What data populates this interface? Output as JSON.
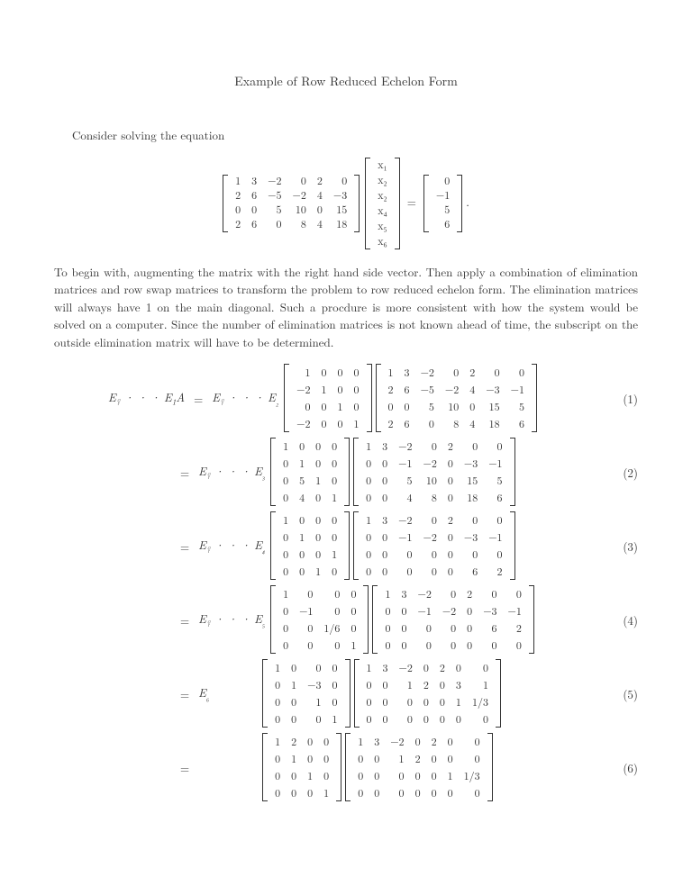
{
  "title": "Example of Row Reduced Echelon Form",
  "intro": "Consider solving the equation",
  "main_matrix": [
    [
      "1",
      "3",
      "−2",
      "0",
      "2",
      "0"
    ],
    [
      "2",
      "6",
      "−5",
      "−2",
      "4",
      "−3"
    ],
    [
      "0",
      "0",
      "5",
      "10",
      "0",
      "15"
    ],
    [
      "2",
      "6",
      "0",
      "8",
      "4",
      "18"
    ]
  ],
  "x_vector": [
    "x₁",
    "x₂",
    "x₂",
    "x₄",
    "x₅",
    "x₆"
  ],
  "rhs_vector": [
    "0",
    "−1",
    "5",
    "6"
  ],
  "body_text": "To begin with, augmenting the matrix with the right hand side vector.  Then apply a combination of elimination matrices and row swap matrices to transform the problem to row reduced echelon form. The elimination matrices will always have 1 on the main diagonal. Such a procdure is more consistent with how the system would be solved on a computer. Since the number of elimination matrices is not known ahead of time, the subscript on the outside elimination matrix will have to be determined.",
  "eq_prefix": "E",
  "eq_subscript_unknown": "?",
  "eq_ellipsis": "· · ·",
  "steps": [
    {
      "num": "(1)",
      "left_label": "E? · · · E₁A",
      "right_label": "E? · · · E₂",
      "E": [
        [
          "1",
          "0",
          "0",
          "0"
        ],
        [
          "−2",
          "1",
          "0",
          "0"
        ],
        [
          "0",
          "0",
          "1",
          "0"
        ],
        [
          "−2",
          "0",
          "0",
          "1"
        ]
      ],
      "M": [
        [
          "1",
          "3",
          "−2",
          "0",
          "2",
          "0",
          "0"
        ],
        [
          "2",
          "6",
          "−5",
          "−2",
          "4",
          "−3",
          "−1"
        ],
        [
          "0",
          "0",
          "5",
          "10",
          "0",
          "15",
          "5"
        ],
        [
          "2",
          "6",
          "0",
          "8",
          "4",
          "18",
          "6"
        ]
      ]
    },
    {
      "num": "(2)",
      "left_label": "",
      "right_label": "E? · · · E₃",
      "E": [
        [
          "1",
          "0",
          "0",
          "0"
        ],
        [
          "0",
          "1",
          "0",
          "0"
        ],
        [
          "0",
          "5",
          "1",
          "0"
        ],
        [
          "0",
          "4",
          "0",
          "1"
        ]
      ],
      "M": [
        [
          "1",
          "3",
          "−2",
          "0",
          "2",
          "0",
          "0"
        ],
        [
          "0",
          "0",
          "−1",
          "−2",
          "0",
          "−3",
          "−1"
        ],
        [
          "0",
          "0",
          "5",
          "10",
          "0",
          "15",
          "5"
        ],
        [
          "0",
          "0",
          "4",
          "8",
          "0",
          "18",
          "6"
        ]
      ]
    },
    {
      "num": "(3)",
      "left_label": "",
      "right_label": "E? · · · E₄",
      "E": [
        [
          "1",
          "0",
          "0",
          "0"
        ],
        [
          "0",
          "1",
          "0",
          "0"
        ],
        [
          "0",
          "0",
          "0",
          "1"
        ],
        [
          "0",
          "0",
          "1",
          "0"
        ]
      ],
      "M": [
        [
          "1",
          "3",
          "−2",
          "0",
          "2",
          "0",
          "0"
        ],
        [
          "0",
          "0",
          "−1",
          "−2",
          "0",
          "−3",
          "−1"
        ],
        [
          "0",
          "0",
          "0",
          "0",
          "0",
          "0",
          "0"
        ],
        [
          "0",
          "0",
          "0",
          "0",
          "0",
          "6",
          "2"
        ]
      ]
    },
    {
      "num": "(4)",
      "left_label": "",
      "right_label": "E? · · · E₅",
      "E": [
        [
          "1",
          "0",
          "0",
          "0"
        ],
        [
          "0",
          "−1",
          "0",
          "0"
        ],
        [
          "0",
          "0",
          "1/6",
          "0"
        ],
        [
          "0",
          "0",
          "0",
          "1"
        ]
      ],
      "M": [
        [
          "1",
          "3",
          "−2",
          "0",
          "2",
          "0",
          "0"
        ],
        [
          "0",
          "0",
          "−1",
          "−2",
          "0",
          "−3",
          "−1"
        ],
        [
          "0",
          "0",
          "0",
          "0",
          "0",
          "6",
          "2"
        ],
        [
          "0",
          "0",
          "0",
          "0",
          "0",
          "0",
          "0"
        ]
      ]
    },
    {
      "num": "(5)",
      "left_label": "",
      "right_label": "E₆",
      "E": [
        [
          "1",
          "0",
          "0",
          "0"
        ],
        [
          "0",
          "1",
          "−3",
          "0"
        ],
        [
          "0",
          "0",
          "1",
          "0"
        ],
        [
          "0",
          "0",
          "0",
          "1"
        ]
      ],
      "M": [
        [
          "1",
          "3",
          "−2",
          "0",
          "2",
          "0",
          "0"
        ],
        [
          "0",
          "0",
          "1",
          "2",
          "0",
          "3",
          "1"
        ],
        [
          "0",
          "0",
          "0",
          "0",
          "0",
          "1",
          "1/3"
        ],
        [
          "0",
          "0",
          "0",
          "0",
          "0",
          "0",
          "0"
        ]
      ]
    },
    {
      "num": "(6)",
      "left_label": "",
      "right_label": "",
      "E": [
        [
          "1",
          "2",
          "0",
          "0"
        ],
        [
          "0",
          "1",
          "0",
          "0"
        ],
        [
          "0",
          "0",
          "1",
          "0"
        ],
        [
          "0",
          "0",
          "0",
          "1"
        ]
      ],
      "M": [
        [
          "1",
          "3",
          "−2",
          "0",
          "2",
          "0",
          "0"
        ],
        [
          "0",
          "0",
          "1",
          "2",
          "0",
          "0",
          "0"
        ],
        [
          "0",
          "0",
          "0",
          "0",
          "0",
          "1",
          "1/3"
        ],
        [
          "0",
          "0",
          "0",
          "0",
          "0",
          "0",
          "0"
        ]
      ]
    }
  ],
  "colors": {
    "text": "#333333",
    "background": "#ffffff"
  },
  "typography": {
    "body_fontsize": 13,
    "math_fontsize": 12,
    "font_family": "Computer Modern / Latin Modern"
  }
}
